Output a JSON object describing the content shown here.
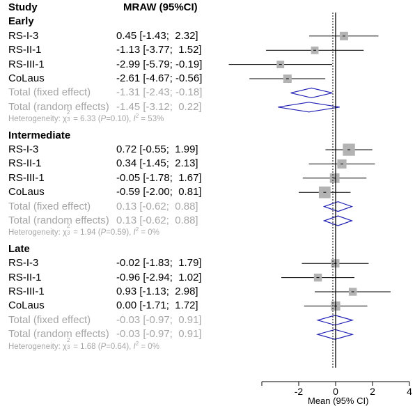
{
  "chart_data": {
    "type": "forest",
    "xlabel": "Mean (95% CI)",
    "x_ticks": [
      -2,
      0,
      2,
      4
    ],
    "header": {
      "study": "Study",
      "measure": "MRAW (95%CI)"
    },
    "groups": [
      {
        "name": "Early",
        "studies": [
          {
            "label": "RS-I-3",
            "ci_text": "0.45 [-1.43;  2.32]",
            "mean": 0.45,
            "lower": -1.43,
            "upper": 2.32,
            "weight": 1.0
          },
          {
            "label": "RS-II-1",
            "ci_text": "-1.13 [-3.77;  1.52]",
            "mean": -1.13,
            "lower": -3.77,
            "upper": 1.52,
            "weight": 0.8
          },
          {
            "label": "RS-III-1",
            "ci_text": "-2.99 [-5.79; -0.19]",
            "mean": -2.99,
            "lower": -5.79,
            "upper": -0.19,
            "weight": 0.8
          },
          {
            "label": "CoLaus",
            "ci_text": "-2.61 [-4.67; -0.56]",
            "mean": -2.61,
            "lower": -4.67,
            "upper": -0.56,
            "weight": 1.0
          }
        ],
        "fixed": {
          "label": "Total (fixed effect)",
          "ci_text": "-1.31 [-2.43; -0.18]",
          "mean": -1.31,
          "lower": -2.43,
          "upper": -0.18
        },
        "random": {
          "label": "Total (random effects)",
          "ci_text": "-1.45 [-3.12;  0.22]",
          "mean": -1.45,
          "lower": -3.12,
          "upper": 0.22
        },
        "heterogeneity": {
          "prefix": "Heterogeneity: χ",
          "sup1": "2",
          "sub": "3",
          "mid": " = 6.33 (",
          "p": "P",
          "pval": "=0.10), ",
          "i": "I",
          "sup2": "2",
          "end": " = 53%"
        }
      },
      {
        "name": "Intermediate",
        "studies": [
          {
            "label": "RS-I-3",
            "ci_text": "0.72 [-0.55;  1.99]",
            "mean": 0.72,
            "lower": -0.55,
            "upper": 1.99,
            "weight": 1.9
          },
          {
            "label": "RS-II-1",
            "ci_text": "0.34 [-1.45;  2.13]",
            "mean": 0.34,
            "lower": -1.45,
            "upper": 2.13,
            "weight": 1.2
          },
          {
            "label": "RS-III-1",
            "ci_text": "-0.05 [-1.78;  1.67]",
            "mean": -0.05,
            "lower": -1.78,
            "upper": 1.67,
            "weight": 1.3
          },
          {
            "label": "CoLaus",
            "ci_text": "-0.59 [-2.00;  0.81]",
            "mean": -0.59,
            "lower": -2.0,
            "upper": 0.81,
            "weight": 1.8
          }
        ],
        "fixed": {
          "label": "Total (fixed effect)",
          "ci_text": "0.13 [-0.62;  0.88]",
          "mean": 0.13,
          "lower": -0.62,
          "upper": 0.88
        },
        "random": {
          "label": "Total (random effects)",
          "ci_text": "0.13 [-0.62;  0.88]",
          "mean": 0.13,
          "lower": -0.62,
          "upper": 0.88
        },
        "heterogeneity": {
          "prefix": "Heterogeneity: χ",
          "sup1": "2",
          "sub": "3",
          "mid": " = 1.94 (",
          "p": "P",
          "pval": "=0.59), ",
          "i": "I",
          "sup2": "2",
          "end": " = 0%"
        }
      },
      {
        "name": "Late",
        "studies": [
          {
            "label": "RS-I-3",
            "ci_text": "-0.02 [-1.83;  1.79]",
            "mean": -0.02,
            "lower": -1.83,
            "upper": 1.79,
            "weight": 1.0
          },
          {
            "label": "RS-II-1",
            "ci_text": "-0.96 [-2.94;  1.02]",
            "mean": -0.96,
            "lower": -2.94,
            "upper": 1.02,
            "weight": 0.9
          },
          {
            "label": "RS-III-1",
            "ci_text": "0.93 [-1.13;  2.98]",
            "mean": 0.93,
            "lower": -1.13,
            "upper": 2.98,
            "weight": 0.9
          },
          {
            "label": "CoLaus",
            "ci_text": "0.00 [-1.71;  1.72]",
            "mean": 0.0,
            "lower": -1.71,
            "upper": 1.72,
            "weight": 1.2
          }
        ],
        "fixed": {
          "label": "Total (fixed effect)",
          "ci_text": "-0.03 [-0.97;  0.91]",
          "mean": -0.03,
          "lower": -0.97,
          "upper": 0.91
        },
        "random": {
          "label": "Total (random effects)",
          "ci_text": "-0.03 [-0.97;  0.91]",
          "mean": -0.03,
          "lower": -0.97,
          "upper": 0.91
        },
        "heterogeneity": {
          "prefix": "Heterogeneity: χ",
          "sup1": "2",
          "sub": "3",
          "mid": " = 1.68 (",
          "p": "P",
          "pval": "=0.64), ",
          "i": "I",
          "sup2": "2",
          "end": " = 0%"
        }
      }
    ],
    "colors": {
      "study": "#000000",
      "summary_text": "#a6a6a6",
      "diamond": "#1f1fb4",
      "square": "#b3b3b3",
      "axis": "#000000"
    }
  }
}
